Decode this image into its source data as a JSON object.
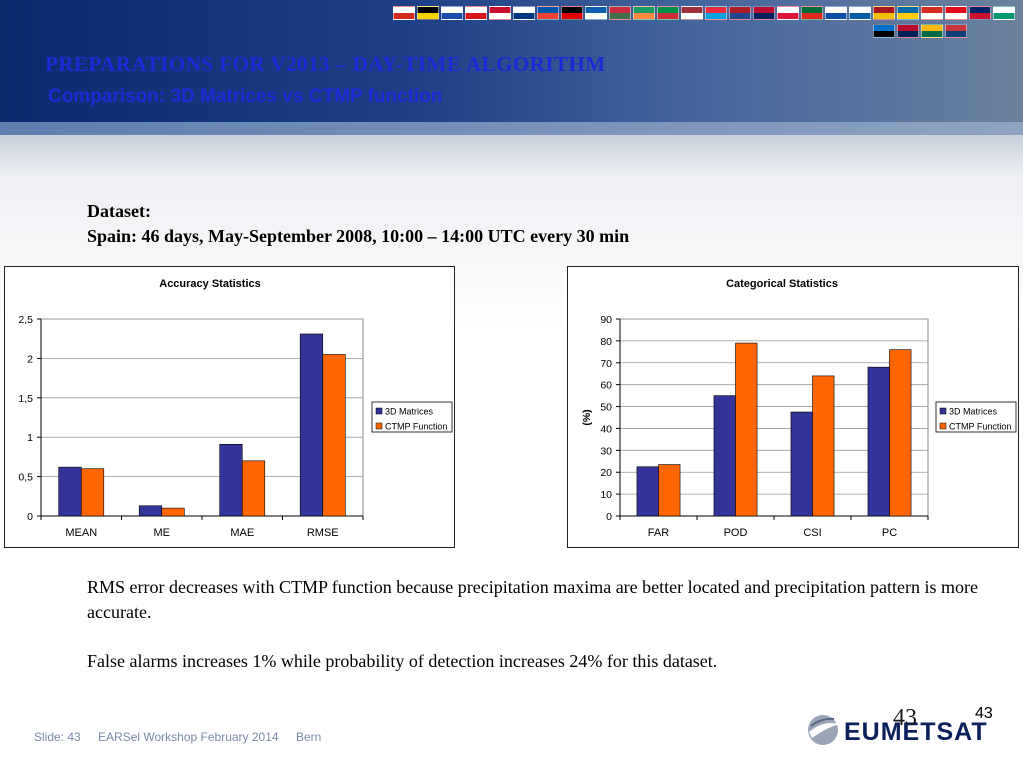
{
  "slide": {
    "title": "PREPARATIONS FOR V2013 – DAY-TIME ALGORITHM",
    "subtitle": "Comparison: 3D Matrices vs CTMP function",
    "dataset_label": "Dataset:",
    "dataset_text": "Spain: 46 days, May-September 2008, 10:00 – 14:00 UTC every 30 min",
    "paragraph1": "RMS error decreases with CTMP function because precipitation maxima are better located and precipitation pattern is more accurate.",
    "paragraph2": "False alarms increases 1% while probability of detection increases 24% for this dataset.",
    "page_number_overlay": "43",
    "page_number": "43"
  },
  "footer": {
    "slide_label": "Slide: 43",
    "event": "EARSel Workshop  February 2014",
    "place": "Bern"
  },
  "logo": {
    "text": "EUMETSAT",
    "icon": "globe-swoosh-icon"
  },
  "banner": {
    "flag_icon": "eu-member-flags-icon",
    "flags": [
      [
        "#ffffff",
        "#d52b1e"
      ],
      [
        "#000000",
        "#f4d300"
      ],
      [
        "#ffffff",
        "#1b4ea8"
      ],
      [
        "#ffffff",
        "#d7141a"
      ],
      [
        "#c8102e",
        "#ffffff"
      ],
      [
        "#ffffff",
        "#003580"
      ],
      [
        "#0055a4",
        "#ef4135"
      ],
      [
        "#000000",
        "#dd0000"
      ],
      [
        "#0d5eaf",
        "#ffffff"
      ],
      [
        "#cd2a3e",
        "#436f4d"
      ],
      [
        "#169b62",
        "#ff883e"
      ],
      [
        "#009246",
        "#ce2b37"
      ],
      [
        "#9e3039",
        "#ffffff"
      ],
      [
        "#ed2939",
        "#00a3dd"
      ],
      [
        "#ae1c28",
        "#21468b"
      ],
      [
        "#ba0c2f",
        "#00205b"
      ],
      [
        "#ffffff",
        "#dc143c"
      ],
      [
        "#046a38",
        "#da291c"
      ],
      [
        "#ffffff",
        "#0b4ea2"
      ],
      [
        "#ffffff",
        "#005da4"
      ],
      [
        "#aa151b",
        "#f1bf00"
      ],
      [
        "#006aa7",
        "#fecc00"
      ],
      [
        "#d52b1e",
        "#ffffff"
      ],
      [
        "#e30a17",
        "#ffffff"
      ],
      [
        "#012169",
        "#c8102e"
      ],
      [
        "#ffffff",
        "#00966e"
      ],
      [
        "#0072ce",
        "#000000"
      ],
      [
        "#ba0c2f",
        "#00205b"
      ],
      [
        "#fdb913",
        "#006a44"
      ],
      [
        "#c6363c",
        "#0c4076"
      ]
    ]
  },
  "chart_data": [
    {
      "type": "bar",
      "title": "Accuracy Statistics",
      "categories": [
        "MEAN",
        "ME",
        "MAE",
        "RMSE"
      ],
      "series": [
        {
          "name": "3D Matrices",
          "color": "#333399",
          "values": [
            0.62,
            0.13,
            0.91,
            2.31
          ]
        },
        {
          "name": "CTMP Function",
          "color": "#ff6600",
          "values": [
            0.6,
            0.1,
            0.7,
            2.05
          ]
        }
      ],
      "ylabel": "",
      "ylim": [
        0,
        2.5
      ],
      "yticks": [
        "0",
        "0,5",
        "1",
        "1,5",
        "2",
        "2,5"
      ],
      "ytick_values": [
        0,
        0.5,
        1,
        1.5,
        2,
        2.5
      ],
      "grid": true,
      "legend": "right"
    },
    {
      "type": "bar",
      "title": "Categorical Statistics",
      "categories": [
        "FAR",
        "POD",
        "CSI",
        "PC"
      ],
      "series": [
        {
          "name": "3D Matrices",
          "color": "#333399",
          "values": [
            22.5,
            55,
            47.5,
            68
          ]
        },
        {
          "name": "CTMP Function",
          "color": "#ff6600",
          "values": [
            23.5,
            79,
            64,
            76
          ]
        }
      ],
      "ylabel": "(%)",
      "ylim": [
        0,
        90
      ],
      "yticks": [
        "0",
        "10",
        "20",
        "30",
        "40",
        "50",
        "60",
        "70",
        "80",
        "90"
      ],
      "ytick_values": [
        0,
        10,
        20,
        30,
        40,
        50,
        60,
        70,
        80,
        90
      ],
      "grid": true,
      "legend": "right"
    }
  ]
}
